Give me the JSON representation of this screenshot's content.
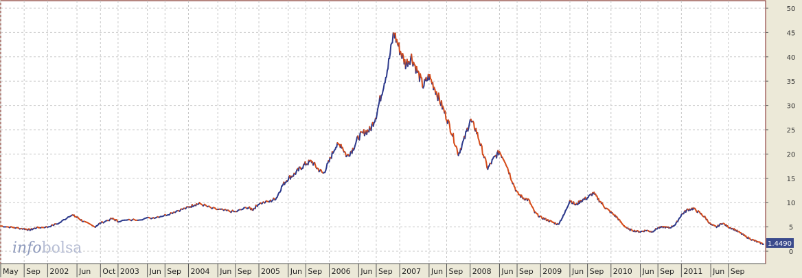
{
  "logo": {
    "part1": "info",
    "part2": "bolsa"
  },
  "colors": {
    "up": "#2d3a8c",
    "down": "#d64c1a",
    "grid": "#c8c8c8",
    "plot_bg": "#ffffff",
    "frame": "#7a1c1c"
  },
  "chart_data": {
    "type": "line",
    "title": "",
    "xlabel": "",
    "ylabel": "",
    "ylim": [
      0,
      50
    ],
    "yticks": [
      0,
      5,
      10,
      15,
      20,
      25,
      30,
      35,
      40,
      45,
      50
    ],
    "grid": true,
    "last_value_label": "1.4490",
    "x_tick_labels": [
      {
        "t": 0,
        "label": "May"
      },
      {
        "t": 4,
        "label": "Sep"
      },
      {
        "t": 8,
        "label": "2002"
      },
      {
        "t": 13,
        "label": "Jun"
      },
      {
        "t": 17,
        "label": "Oct"
      },
      {
        "t": 20,
        "label": "2003"
      },
      {
        "t": 25,
        "label": "Jun"
      },
      {
        "t": 28,
        "label": "Sep"
      },
      {
        "t": 32,
        "label": "2004"
      },
      {
        "t": 37,
        "label": "Jun"
      },
      {
        "t": 40,
        "label": "Sep"
      },
      {
        "t": 44,
        "label": "2005"
      },
      {
        "t": 49,
        "label": "Jun"
      },
      {
        "t": 52,
        "label": "Sep"
      },
      {
        "t": 56,
        "label": "2006"
      },
      {
        "t": 61,
        "label": "Jun"
      },
      {
        "t": 64,
        "label": "Sep"
      },
      {
        "t": 68,
        "label": "2007"
      },
      {
        "t": 73,
        "label": "Jun"
      },
      {
        "t": 76,
        "label": "Sep"
      },
      {
        "t": 80,
        "label": "2008"
      },
      {
        "t": 85,
        "label": "Jun"
      },
      {
        "t": 88,
        "label": "Sep"
      },
      {
        "t": 92,
        "label": "2009"
      },
      {
        "t": 97,
        "label": "Jun"
      },
      {
        "t": 100,
        "label": "Sep"
      },
      {
        "t": 104,
        "label": "2010"
      },
      {
        "t": 109,
        "label": "Jun"
      },
      {
        "t": 112,
        "label": "Sep"
      },
      {
        "t": 116,
        "label": "2011"
      },
      {
        "t": 121,
        "label": "Jun"
      },
      {
        "t": 124,
        "label": "Sep"
      }
    ],
    "x_range": [
      0,
      130
    ],
    "series": [
      {
        "values": [
          [
            0,
            5.2
          ],
          [
            2,
            4.9
          ],
          [
            4,
            4.6
          ],
          [
            5,
            4.4
          ],
          [
            6,
            4.8
          ],
          [
            8,
            5.0
          ],
          [
            10,
            5.8
          ],
          [
            12,
            7.5
          ],
          [
            13,
            7.0
          ],
          [
            14,
            6.2
          ],
          [
            16,
            5.0
          ],
          [
            17,
            5.8
          ],
          [
            19,
            6.7
          ],
          [
            20,
            6.2
          ],
          [
            23,
            6.5
          ],
          [
            26,
            6.9
          ],
          [
            28,
            7.4
          ],
          [
            30,
            8.3
          ],
          [
            32,
            9.0
          ],
          [
            33,
            9.6
          ],
          [
            34,
            9.8
          ],
          [
            36,
            8.8
          ],
          [
            38,
            8.4
          ],
          [
            40,
            8.1
          ],
          [
            42,
            9.0
          ],
          [
            43,
            8.6
          ],
          [
            44,
            9.8
          ],
          [
            46,
            10.3
          ],
          [
            47,
            11.0
          ],
          [
            48,
            13.5
          ],
          [
            49,
            15.0
          ],
          [
            50,
            15.8
          ],
          [
            51,
            17.0
          ],
          [
            52,
            18.0
          ],
          [
            53,
            18.5
          ],
          [
            54,
            17.0
          ],
          [
            55,
            16.0
          ],
          [
            56,
            18.5
          ],
          [
            57,
            21.5
          ],
          [
            58,
            22.0
          ],
          [
            59,
            19.5
          ],
          [
            60,
            21.0
          ],
          [
            61,
            23.5
          ],
          [
            62,
            24.5
          ],
          [
            63,
            25.0
          ],
          [
            64,
            28.0
          ],
          [
            65,
            33.0
          ],
          [
            66,
            38.0
          ],
          [
            67,
            45.0
          ],
          [
            68,
            41.5
          ],
          [
            69,
            38.5
          ],
          [
            70,
            40.0
          ],
          [
            71,
            37.0
          ],
          [
            72,
            34.0
          ],
          [
            73,
            36.0
          ],
          [
            74,
            33.5
          ],
          [
            75,
            30.5
          ],
          [
            76,
            27.5
          ],
          [
            77,
            24.0
          ],
          [
            78,
            20.0
          ],
          [
            79,
            23.0
          ],
          [
            80,
            27.0
          ],
          [
            81,
            25.0
          ],
          [
            82,
            21.0
          ],
          [
            83,
            17.0
          ],
          [
            84,
            19.0
          ],
          [
            85,
            20.5
          ],
          [
            86,
            18.5
          ],
          [
            87,
            15.0
          ],
          [
            88,
            12.0
          ],
          [
            89,
            11.0
          ],
          [
            90,
            10.5
          ],
          [
            91,
            8.0
          ],
          [
            92,
            7.0
          ],
          [
            93,
            6.5
          ],
          [
            94,
            6.0
          ],
          [
            95,
            5.5
          ],
          [
            96,
            7.5
          ],
          [
            97,
            10.5
          ],
          [
            98,
            9.5
          ],
          [
            99,
            10.5
          ],
          [
            100,
            11.0
          ],
          [
            101,
            12.0
          ],
          [
            102,
            10.5
          ],
          [
            103,
            9.0
          ],
          [
            104,
            8.0
          ],
          [
            105,
            7.0
          ],
          [
            106,
            5.5
          ],
          [
            107,
            4.5
          ],
          [
            108,
            4.2
          ],
          [
            109,
            4.0
          ],
          [
            110,
            4.3
          ],
          [
            111,
            4.0
          ],
          [
            112,
            4.8
          ],
          [
            113,
            5.0
          ],
          [
            114,
            4.8
          ],
          [
            115,
            5.5
          ],
          [
            116,
            7.5
          ],
          [
            117,
            8.5
          ],
          [
            118,
            8.8
          ],
          [
            119,
            8.0
          ],
          [
            120,
            7.0
          ],
          [
            121,
            5.5
          ],
          [
            122,
            5.0
          ],
          [
            123,
            5.8
          ],
          [
            124,
            5.0
          ],
          [
            125,
            4.5
          ],
          [
            126,
            3.8
          ],
          [
            127,
            3.0
          ],
          [
            128,
            2.4
          ],
          [
            129,
            1.9
          ],
          [
            130,
            1.45
          ]
        ]
      }
    ]
  }
}
